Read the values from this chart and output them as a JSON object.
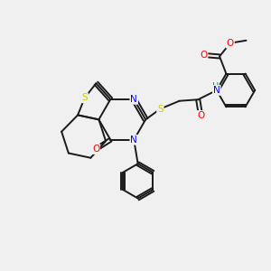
{
  "background_color": "#f0f0f0",
  "atom_colors": {
    "S": "#cccc00",
    "N": "#0000ff",
    "O": "#ff0000",
    "H": "#008080",
    "C": "#000000"
  },
  "bond_color": "#1a1a1a",
  "bond_width": 1.4,
  "figsize": [
    3.0,
    3.0
  ],
  "dpi": 100
}
